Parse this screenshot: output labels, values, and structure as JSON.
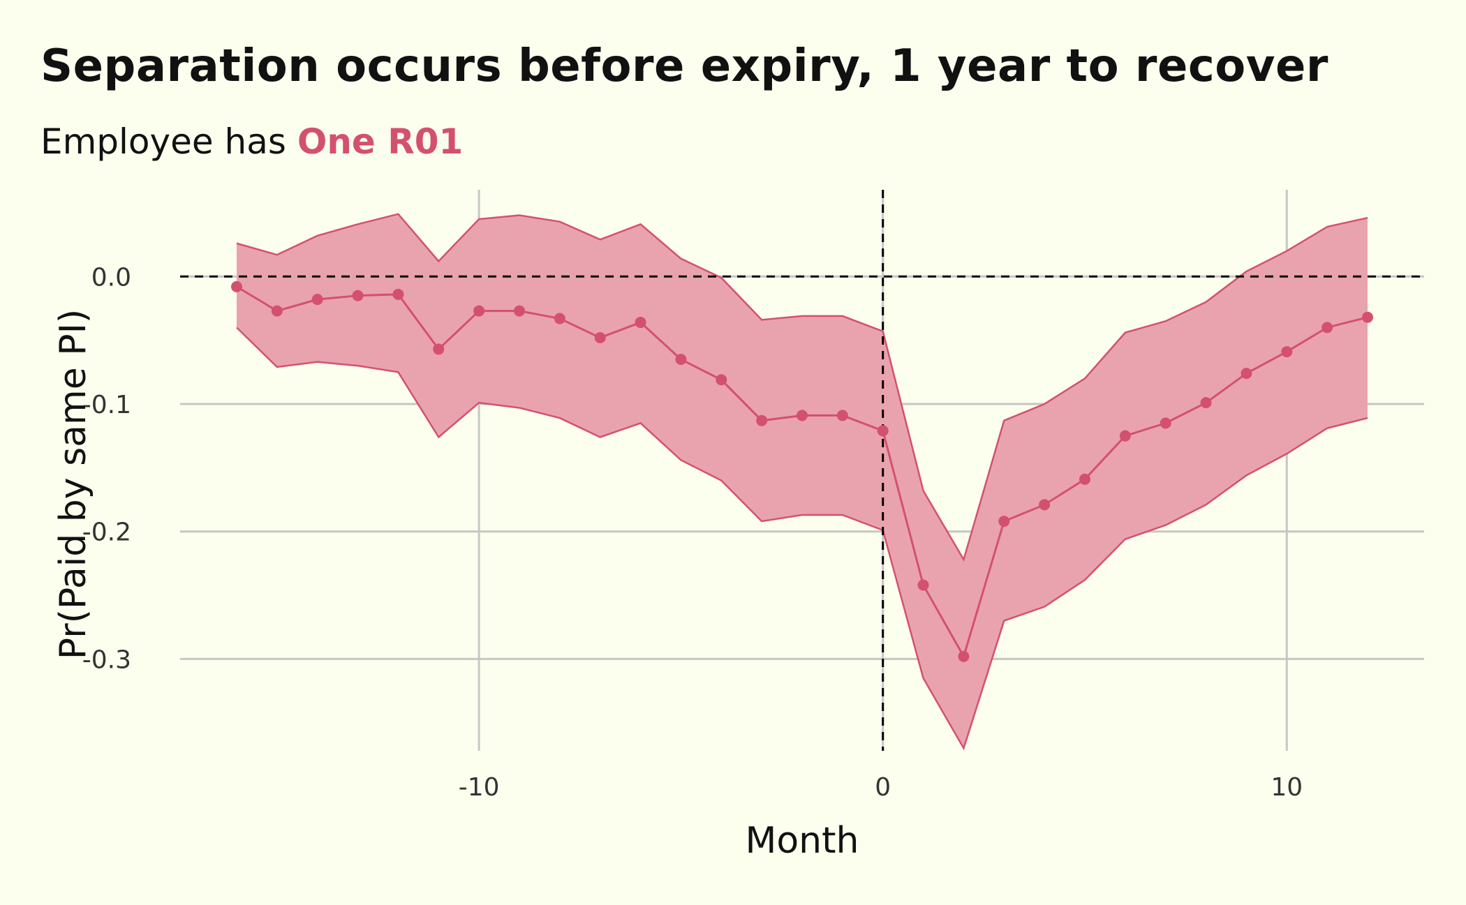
{
  "chart_data": {
    "type": "line",
    "title": "Separation occurs before expiry, 1 year to recover",
    "subtitle_prefix": "Employee has ",
    "subtitle_highlight": "One R01",
    "xlabel": "Month",
    "ylabel": "Pr(Paid by same PI)",
    "x_ticks": [
      -10,
      0,
      10
    ],
    "x_tick_labels": [
      "-10",
      "0",
      "10"
    ],
    "y_ticks": [
      0.0,
      -0.1,
      -0.2,
      -0.3
    ],
    "y_tick_labels": [
      "0.0",
      "-0.1",
      "-0.2",
      "-0.3"
    ],
    "xlim": [
      -17.4,
      13.4
    ],
    "ylim": [
      -0.372,
      0.068
    ],
    "reference_lines": {
      "x": 0,
      "y": 0
    },
    "grid": true,
    "series": [
      {
        "x": [
          -16,
          -15,
          -14,
          -13,
          -12,
          -11,
          -10,
          -9,
          -8,
          -7,
          -6,
          -5,
          -4,
          -3,
          -2,
          -1,
          0,
          1,
          2,
          3,
          4,
          5,
          6,
          7,
          8,
          9,
          10,
          11,
          12
        ],
        "values": [
          -0.008,
          -0.027,
          -0.018,
          -0.015,
          -0.014,
          -0.057,
          -0.027,
          -0.027,
          -0.033,
          -0.048,
          -0.036,
          -0.065,
          -0.081,
          -0.113,
          -0.109,
          -0.109,
          -0.121,
          -0.242,
          -0.298,
          -0.192,
          -0.179,
          -0.159,
          -0.125,
          -0.115,
          -0.099,
          -0.076,
          -0.059,
          -0.04,
          -0.032
        ],
        "lower": [
          -0.04,
          -0.071,
          -0.067,
          -0.07,
          -0.075,
          -0.126,
          -0.099,
          -0.103,
          -0.111,
          -0.126,
          -0.115,
          -0.144,
          -0.16,
          -0.192,
          -0.187,
          -0.187,
          -0.199,
          -0.315,
          -0.37,
          -0.27,
          -0.259,
          -0.238,
          -0.206,
          -0.195,
          -0.179,
          -0.156,
          -0.139,
          -0.119,
          -0.111
        ],
        "upper": [
          0.026,
          0.017,
          0.032,
          0.041,
          0.049,
          0.012,
          0.045,
          0.048,
          0.043,
          0.029,
          0.041,
          0.014,
          -0.001,
          -0.034,
          -0.031,
          -0.031,
          -0.043,
          -0.168,
          -0.222,
          -0.113,
          -0.1,
          -0.08,
          -0.044,
          -0.035,
          -0.02,
          0.004,
          0.02,
          0.039,
          0.046
        ]
      }
    ],
    "colors": {
      "series": "#D4506F",
      "band": "#E9A3AE",
      "grid": "#C6C6C6",
      "reference": "#000000",
      "background": "#FCFEEE"
    }
  }
}
